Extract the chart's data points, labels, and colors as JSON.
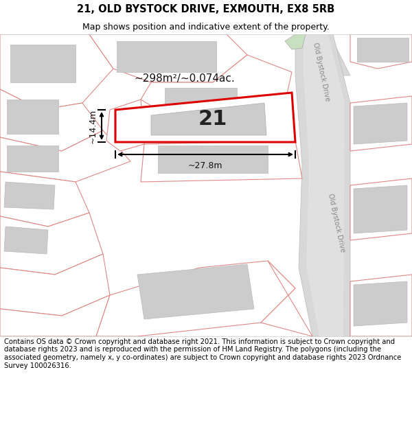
{
  "title_line1": "21, OLD BYSTOCK DRIVE, EXMOUTH, EX8 5RB",
  "title_line2": "Map shows position and indicative extent of the property.",
  "footer_text": "Contains OS data © Crown copyright and database right 2021. This information is subject to Crown copyright and database rights 2023 and is reproduced with the permission of HM Land Registry. The polygons (including the associated geometry, namely x, y co-ordinates) are subject to Crown copyright and database rights 2023 Ordnance Survey 100026316.",
  "area_label": "~298m²/~0.074ac.",
  "number_label": "21",
  "dim_width": "~27.8m",
  "dim_height": "~14.4m",
  "road_label_top": "Old Bystock Drive",
  "road_label_bottom": "Old Bystock Drive",
  "bg_color": "#f0f0f0",
  "parcel_fill": "#ffffff",
  "parcel_edge": "#e08888",
  "building_fill": "#cccccc",
  "building_edge": "#bbbbbb",
  "road_fill": "#d8d8d8",
  "road_edge": "#bbbbbb",
  "plot_fill": "#ffffff",
  "plot_edge": "#dd0000",
  "plot_bld_fill": "#cccccc",
  "road_label_color": "#888888",
  "title_fontsize": 10.5,
  "subtitle_fontsize": 9,
  "footer_fontsize": 7.2,
  "number_fontsize": 22,
  "area_fontsize": 11,
  "dim_fontsize": 9
}
